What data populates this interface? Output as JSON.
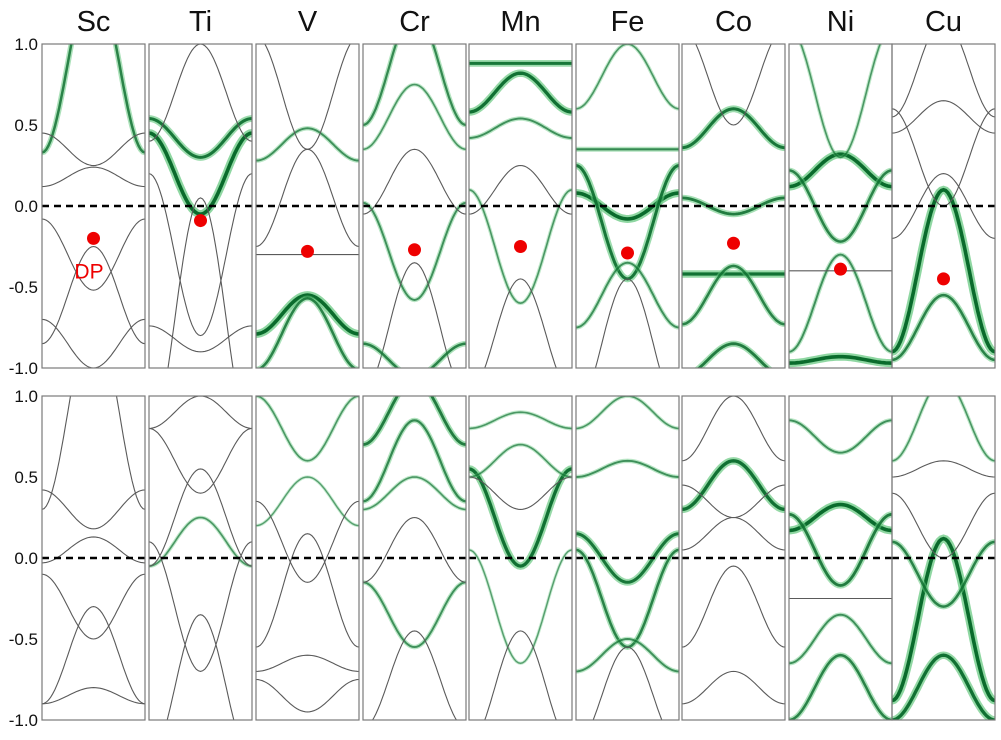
{
  "chart_data": {
    "type": "line",
    "title": "",
    "xlabel": "",
    "ylabel": "",
    "ylim": [
      -1.0,
      1.0
    ],
    "yticks": [
      "1.0",
      "0.5",
      "0.0",
      "-0.5",
      "-1.0"
    ],
    "ytick_values": [
      1.0,
      0.5,
      0.0,
      -0.5,
      -1.0
    ],
    "fermi_level": 0.0,
    "elements": [
      "Sc",
      "Ti",
      "V",
      "Cr",
      "Mn",
      "Fe",
      "Co",
      "Ni",
      "Cu"
    ],
    "dirac_point_label": "DP",
    "rows": [
      {
        "name": "top",
        "dirac_points": [
          {
            "element": "Sc",
            "energy": -0.2
          },
          {
            "element": "Ti",
            "energy": -0.09
          },
          {
            "element": "V",
            "energy": -0.28
          },
          {
            "element": "Cr",
            "energy": -0.27
          },
          {
            "element": "Mn",
            "energy": -0.25
          },
          {
            "element": "Fe",
            "energy": -0.29
          },
          {
            "element": "Co",
            "energy": -0.23
          },
          {
            "element": "Ni",
            "energy": -0.39
          },
          {
            "element": "Cu",
            "energy": -0.45
          }
        ],
        "panels": [
          {
            "element": "Sc",
            "bands": [
              {
                "center": 0.88,
                "amplitude": 0.55,
                "weight": 0.6
              },
              {
                "center": -0.55,
                "amplitude": 0.3,
                "weight": 0.0
              },
              {
                "center": 0.35,
                "amplitude": -0.1,
                "weight": 0.0
              },
              {
                "center": 0.18,
                "amplitude": 0.06,
                "weight": 0.0
              },
              {
                "center": -0.3,
                "amplitude": -0.22,
                "weight": 0.0
              },
              {
                "center": -0.85,
                "amplitude": -0.15,
                "weight": 0.0
              }
            ]
          },
          {
            "element": "Ti",
            "bands": [
              {
                "center": 0.2,
                "amplitude": -0.25,
                "weight": 1.0
              },
              {
                "center": 0.42,
                "amplitude": -0.12,
                "weight": 0.8
              },
              {
                "center": -0.7,
                "amplitude": 0.75,
                "weight": 0.0
              },
              {
                "center": 0.7,
                "amplitude": 0.3,
                "weight": 0.0
              },
              {
                "center": -0.82,
                "amplitude": -0.08,
                "weight": 0.0
              },
              {
                "center": -0.3,
                "amplitude": -0.5,
                "weight": 0.0
              }
            ]
          },
          {
            "element": "V",
            "bands": [
              {
                "center": -0.67,
                "amplitude": 0.12,
                "weight": 1.0
              },
              {
                "center": -0.79,
                "amplitude": 0.22,
                "weight": 0.6
              },
              {
                "center": 0.38,
                "amplitude": 0.1,
                "weight": 0.4
              },
              {
                "center": 0.7,
                "amplitude": -0.35,
                "weight": 0.0
              },
              {
                "center": -0.3,
                "amplitude": 0.0,
                "weight": 0.0
              },
              {
                "center": 0.05,
                "amplitude": 0.3,
                "weight": 0.0
              }
            ]
          },
          {
            "element": "Cr",
            "bands": [
              {
                "center": 0.85,
                "amplitude": 0.35,
                "weight": 0.5
              },
              {
                "center": 0.55,
                "amplitude": 0.2,
                "weight": 0.3
              },
              {
                "center": -0.28,
                "amplitude": -0.3,
                "weight": 0.4
              },
              {
                "center": -0.75,
                "amplitude": 0.4,
                "weight": 0.0
              },
              {
                "center": 0.15,
                "amplitude": 0.2,
                "weight": 0.0
              },
              {
                "center": -0.95,
                "amplitude": -0.1,
                "weight": 0.6
              }
            ]
          },
          {
            "element": "Mn",
            "bands": [
              {
                "center": 0.88,
                "amplitude": 0.0,
                "weight": 0.8
              },
              {
                "center": 0.7,
                "amplitude": 0.12,
                "weight": 0.9
              },
              {
                "center": 0.48,
                "amplitude": 0.06,
                "weight": 0.4
              },
              {
                "center": -0.25,
                "amplitude": -0.35,
                "weight": 0.3
              },
              {
                "center": 0.1,
                "amplitude": 0.15,
                "weight": 0.0
              },
              {
                "center": -0.8,
                "amplitude": 0.35,
                "weight": 0.0
              }
            ]
          },
          {
            "element": "Fe",
            "bands": [
              {
                "center": 0.0,
                "amplitude": -0.08,
                "weight": 1.0
              },
              {
                "center": -0.1,
                "amplitude": -0.35,
                "weight": 0.8
              },
              {
                "center": -0.55,
                "amplitude": 0.2,
                "weight": 0.4
              },
              {
                "center": 0.35,
                "amplitude": 0.0,
                "weight": 0.5
              },
              {
                "center": 0.8,
                "amplitude": 0.2,
                "weight": 0.3
              },
              {
                "center": -0.85,
                "amplitude": 0.4,
                "weight": 0.0
              }
            ]
          },
          {
            "element": "Co",
            "bands": [
              {
                "center": 0.48,
                "amplitude": 0.12,
                "weight": 0.8
              },
              {
                "center": 0.0,
                "amplitude": -0.05,
                "weight": 0.7
              },
              {
                "center": -0.42,
                "amplitude": 0.0,
                "weight": 0.9
              },
              {
                "center": -0.55,
                "amplitude": 0.18,
                "weight": 0.6
              },
              {
                "center": -0.95,
                "amplitude": 0.1,
                "weight": 0.7
              },
              {
                "center": 0.8,
                "amplitude": -0.3,
                "weight": 0.0
              }
            ]
          },
          {
            "element": "Ni",
            "bands": [
              {
                "center": 0.22,
                "amplitude": 0.1,
                "weight": 1.0
              },
              {
                "center": 0.0,
                "amplitude": -0.22,
                "weight": 0.6
              },
              {
                "center": -0.95,
                "amplitude": 0.02,
                "weight": 1.0
              },
              {
                "center": -0.6,
                "amplitude": 0.3,
                "weight": 0.4
              },
              {
                "center": 0.7,
                "amplitude": -0.4,
                "weight": 0.3
              },
              {
                "center": -0.4,
                "amplitude": 0.0,
                "weight": 0.0
              }
            ]
          },
          {
            "element": "Cu",
            "bands": [
              {
                "center": -0.4,
                "amplitude": 0.5,
                "weight": 1.0
              },
              {
                "center": -0.75,
                "amplitude": 0.2,
                "weight": 0.6
              },
              {
                "center": 0.85,
                "amplitude": 0.3,
                "weight": 0.0
              },
              {
                "center": 0.3,
                "amplitude": -0.3,
                "weight": 0.0
              },
              {
                "center": 0.0,
                "amplitude": 0.2,
                "weight": 0.0
              },
              {
                "center": 0.55,
                "amplitude": 0.1,
                "weight": 0.0
              }
            ]
          }
        ]
      },
      {
        "name": "bottom",
        "dirac_points": [],
        "panels": [
          {
            "element": "Sc",
            "bands": [
              {
                "center": 0.9,
                "amplitude": 0.6,
                "weight": 0.0
              },
              {
                "center": -0.6,
                "amplitude": 0.3,
                "weight": 0.0
              },
              {
                "center": 0.3,
                "amplitude": -0.12,
                "weight": 0.0
              },
              {
                "center": 0.05,
                "amplitude": 0.08,
                "weight": 0.0
              },
              {
                "center": -0.3,
                "amplitude": -0.2,
                "weight": 0.0
              },
              {
                "center": -0.85,
                "amplitude": 0.05,
                "weight": 0.0
              }
            ]
          },
          {
            "element": "Ti",
            "bands": [
              {
                "center": 0.1,
                "amplitude": 0.15,
                "weight": 0.3
              },
              {
                "center": -0.8,
                "amplitude": 0.45,
                "weight": 0.0
              },
              {
                "center": 0.6,
                "amplitude": -0.2,
                "weight": 0.0
              },
              {
                "center": 0.9,
                "amplitude": 0.1,
                "weight": 0.0
              },
              {
                "center": -0.3,
                "amplitude": -0.4,
                "weight": 0.0
              },
              {
                "center": 0.25,
                "amplitude": 0.3,
                "weight": 0.0
              }
            ]
          },
          {
            "element": "V",
            "bands": [
              {
                "center": 0.8,
                "amplitude": -0.2,
                "weight": 0.3
              },
              {
                "center": 0.35,
                "amplitude": 0.15,
                "weight": 0.2
              },
              {
                "center": -0.2,
                "amplitude": 0.35,
                "weight": 0.0
              },
              {
                "center": -0.65,
                "amplitude": 0.05,
                "weight": 0.0
              },
              {
                "center": -0.85,
                "amplitude": -0.1,
                "weight": 0.0
              },
              {
                "center": 0.1,
                "amplitude": -0.25,
                "weight": 0.0
              }
            ]
          },
          {
            "element": "Cr",
            "bands": [
              {
                "center": 0.9,
                "amplitude": 0.2,
                "weight": 0.7
              },
              {
                "center": 0.6,
                "amplitude": 0.25,
                "weight": 0.5
              },
              {
                "center": 0.4,
                "amplitude": 0.1,
                "weight": 0.3
              },
              {
                "center": -0.35,
                "amplitude": -0.2,
                "weight": 0.4
              },
              {
                "center": -0.75,
                "amplitude": 0.3,
                "weight": 0.0
              },
              {
                "center": 0.05,
                "amplitude": 0.2,
                "weight": 0.0
              }
            ]
          },
          {
            "element": "Mn",
            "bands": [
              {
                "center": 0.25,
                "amplitude": -0.3,
                "weight": 0.9
              },
              {
                "center": 0.85,
                "amplitude": 0.05,
                "weight": 0.3
              },
              {
                "center": 0.6,
                "amplitude": 0.1,
                "weight": 0.3
              },
              {
                "center": -0.3,
                "amplitude": -0.35,
                "weight": 0.2
              },
              {
                "center": -0.8,
                "amplitude": 0.35,
                "weight": 0.0
              },
              {
                "center": 0.4,
                "amplitude": -0.1,
                "weight": 0.0
              }
            ]
          },
          {
            "element": "Fe",
            "bands": [
              {
                "center": 0.0,
                "amplitude": -0.15,
                "weight": 0.8
              },
              {
                "center": -0.25,
                "amplitude": -0.3,
                "weight": 0.6
              },
              {
                "center": -0.6,
                "amplitude": 0.1,
                "weight": 0.4
              },
              {
                "center": 0.55,
                "amplitude": 0.05,
                "weight": 0.4
              },
              {
                "center": 0.9,
                "amplitude": 0.1,
                "weight": 0.3
              },
              {
                "center": -0.85,
                "amplitude": 0.3,
                "weight": 0.0
              }
            ]
          },
          {
            "element": "Co",
            "bands": [
              {
                "center": 0.45,
                "amplitude": 0.15,
                "weight": 0.9
              },
              {
                "center": 0.8,
                "amplitude": 0.2,
                "weight": 0.0
              },
              {
                "center": 0.15,
                "amplitude": 0.1,
                "weight": 0.0
              },
              {
                "center": -0.3,
                "amplitude": 0.25,
                "weight": 0.0
              },
              {
                "center": -0.8,
                "amplitude": 0.1,
                "weight": 0.0
              },
              {
                "center": 0.35,
                "amplitude": -0.1,
                "weight": 0.0
              }
            ]
          },
          {
            "element": "Ni",
            "bands": [
              {
                "center": 0.25,
                "amplitude": 0.08,
                "weight": 1.0
              },
              {
                "center": 0.05,
                "amplitude": -0.22,
                "weight": 0.7
              },
              {
                "center": -0.8,
                "amplitude": 0.2,
                "weight": 0.6
              },
              {
                "center": -0.5,
                "amplitude": 0.15,
                "weight": 0.4
              },
              {
                "center": 0.75,
                "amplitude": -0.1,
                "weight": 0.4
              },
              {
                "center": -0.25,
                "amplitude": 0.0,
                "weight": 0.0
              }
            ]
          },
          {
            "element": "Cu",
            "bands": [
              {
                "center": -0.38,
                "amplitude": 0.5,
                "weight": 1.0
              },
              {
                "center": -0.8,
                "amplitude": 0.2,
                "weight": 0.9
              },
              {
                "center": -0.1,
                "amplitude": -0.2,
                "weight": 0.6
              },
              {
                "center": 0.85,
                "amplitude": 0.25,
                "weight": 0.3
              },
              {
                "center": 0.55,
                "amplitude": 0.05,
                "weight": 0.0
              },
              {
                "center": 0.2,
                "amplitude": -0.2,
                "weight": 0.0
              }
            ]
          }
        ]
      }
    ]
  },
  "colors": {
    "band_plain": "#5a5a5a",
    "band_weighted": "#0a6b2c",
    "band_glow": "#5fc67a",
    "fermi_line": "#000000",
    "dirac_point": "#ee0000",
    "panel_border": "#7a7a7a",
    "text": "#111111"
  }
}
